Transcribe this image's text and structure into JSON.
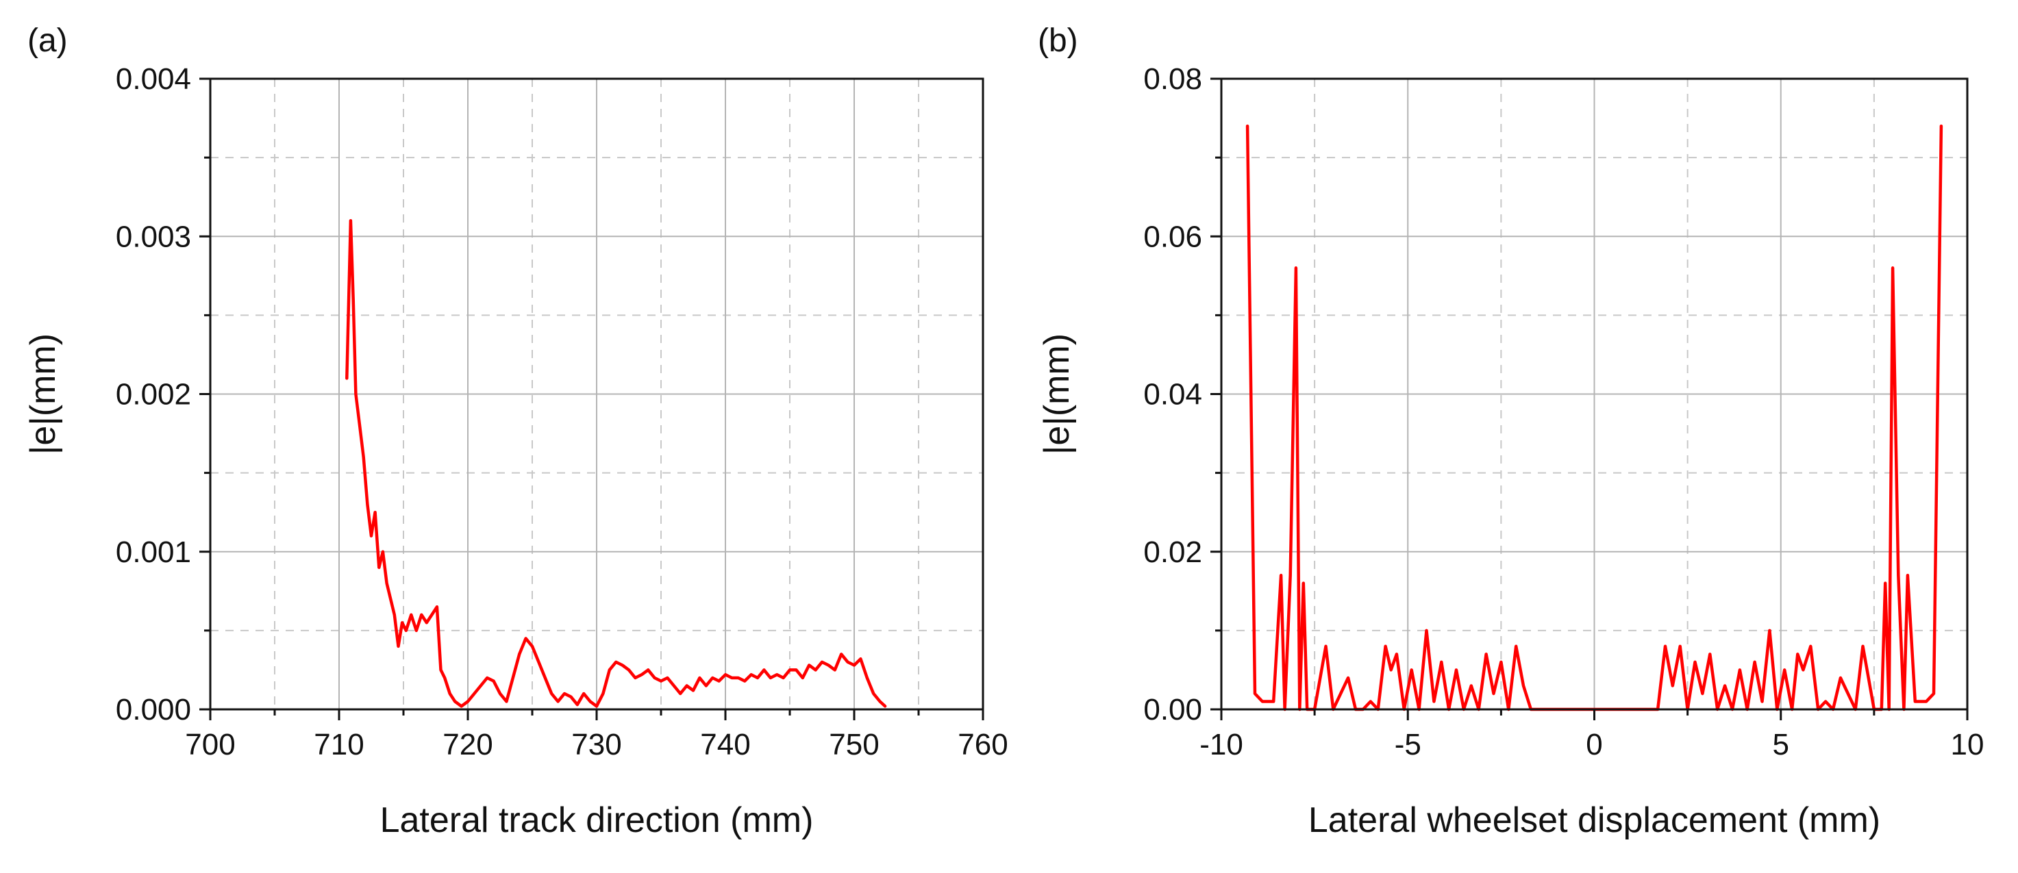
{
  "chart_data": [
    {
      "type": "line",
      "panel_label": "(a)",
      "title": "",
      "xlabel": "Lateral track direction (mm)",
      "ylabel": "|e|(mm)",
      "xlim": [
        700,
        760
      ],
      "ylim": [
        0,
        0.004
      ],
      "xticks": [
        700,
        710,
        720,
        730,
        740,
        750,
        760
      ],
      "xtick_labels": [
        "700",
        "710",
        "720",
        "730",
        "740",
        "750",
        "760"
      ],
      "yticks": [
        0,
        0.001,
        0.002,
        0.003,
        0.004
      ],
      "ytick_labels": [
        "0.000",
        "0.001",
        "0.002",
        "0.003",
        "0.004"
      ],
      "grid": true,
      "legend": "none",
      "series": [
        {
          "name": "|e|",
          "color": "#ff0000",
          "x": [
            710.6,
            710.9,
            711.1,
            711.3,
            711.6,
            711.9,
            712.2,
            712.5,
            712.8,
            713.1,
            713.4,
            713.7,
            714.0,
            714.3,
            714.6,
            714.9,
            715.2,
            715.6,
            716.0,
            716.4,
            716.8,
            717.2,
            717.6,
            717.9,
            718.2,
            718.6,
            719.0,
            719.5,
            720.0,
            720.5,
            721.0,
            721.5,
            722.0,
            722.5,
            723.0,
            723.5,
            724.0,
            724.5,
            725.0,
            725.5,
            726.0,
            726.5,
            727.0,
            727.5,
            728.0,
            728.5,
            729.0,
            729.5,
            730.0,
            730.5,
            731.0,
            731.5,
            732.0,
            732.5,
            733.0,
            733.5,
            734.0,
            734.5,
            735.0,
            735.5,
            736.0,
            736.5,
            737.0,
            737.5,
            738.0,
            738.5,
            739.0,
            739.5,
            740.0,
            740.5,
            741.0,
            741.5,
            742.0,
            742.5,
            743.0,
            743.5,
            744.0,
            744.5,
            745.0,
            745.5,
            746.0,
            746.5,
            747.0,
            747.5,
            748.0,
            748.5,
            749.0,
            749.5,
            750.0,
            750.5,
            751.0,
            751.5,
            752.0,
            752.4
          ],
          "y": [
            0.0021,
            0.0031,
            0.0026,
            0.002,
            0.0018,
            0.0016,
            0.0013,
            0.0011,
            0.00125,
            0.0009,
            0.001,
            0.0008,
            0.0007,
            0.0006,
            0.0004,
            0.00055,
            0.0005,
            0.0006,
            0.0005,
            0.0006,
            0.00055,
            0.0006,
            0.00065,
            0.00025,
            0.0002,
            0.0001,
            5e-05,
            2e-05,
            5e-05,
            0.0001,
            0.00015,
            0.0002,
            0.00018,
            0.0001,
            5e-05,
            0.0002,
            0.00035,
            0.00045,
            0.0004,
            0.0003,
            0.0002,
            0.0001,
            5e-05,
            0.0001,
            8e-05,
            3e-05,
            0.0001,
            5e-05,
            2e-05,
            0.0001,
            0.00025,
            0.0003,
            0.00028,
            0.00025,
            0.0002,
            0.00022,
            0.00025,
            0.0002,
            0.00018,
            0.0002,
            0.00015,
            0.0001,
            0.00015,
            0.00012,
            0.0002,
            0.00015,
            0.0002,
            0.00018,
            0.00022,
            0.0002,
            0.0002,
            0.00018,
            0.00022,
            0.0002,
            0.00025,
            0.0002,
            0.00022,
            0.0002,
            0.00025,
            0.00025,
            0.0002,
            0.00028,
            0.00025,
            0.0003,
            0.00028,
            0.00025,
            0.00035,
            0.0003,
            0.00028,
            0.00032,
            0.0002,
            0.0001,
            5e-05,
            2e-05
          ]
        }
      ]
    },
    {
      "type": "line",
      "panel_label": "(b)",
      "title": "",
      "xlabel": "Lateral wheelset displacement (mm)",
      "ylabel": "|e|(mm)",
      "xlim": [
        -10,
        10
      ],
      "ylim": [
        0,
        0.08
      ],
      "xticks": [
        -10,
        -5,
        0,
        5,
        10
      ],
      "xtick_labels": [
        "-10",
        "-5",
        "0",
        "5",
        "10"
      ],
      "yticks": [
        0,
        0.02,
        0.04,
        0.06,
        0.08
      ],
      "ytick_labels": [
        "0.00",
        "0.02",
        "0.04",
        "0.06",
        "0.08"
      ],
      "grid": true,
      "legend": "none",
      "series": [
        {
          "name": "|e|",
          "color": "#ff0000",
          "x": [
            -9.3,
            -9.1,
            -8.9,
            -8.6,
            -8.4,
            -8.3,
            -8.15,
            -8.0,
            -7.9,
            -7.8,
            -7.7,
            -7.5,
            -7.2,
            -7.0,
            -6.8,
            -6.6,
            -6.4,
            -6.2,
            -6.0,
            -5.8,
            -5.6,
            -5.45,
            -5.3,
            -5.1,
            -4.9,
            -4.7,
            -4.5,
            -4.3,
            -4.1,
            -3.9,
            -3.7,
            -3.5,
            -3.3,
            -3.1,
            -2.9,
            -2.7,
            -2.5,
            -2.3,
            -2.1,
            -1.9,
            -1.7,
            1.7,
            1.9,
            2.1,
            2.3,
            2.5,
            2.7,
            2.9,
            3.1,
            3.3,
            3.5,
            3.7,
            3.9,
            4.1,
            4.3,
            4.5,
            4.7,
            4.9,
            5.1,
            5.3,
            5.45,
            5.6,
            5.8,
            6.0,
            6.2,
            6.4,
            6.6,
            6.8,
            7.0,
            7.2,
            7.5,
            7.7,
            7.8,
            7.9,
            8.0,
            8.15,
            8.3,
            8.4,
            8.6,
            8.9,
            9.1,
            9.3
          ],
          "y": [
            0.074,
            0.002,
            0.001,
            0.001,
            0.017,
            0.0,
            0.017,
            0.056,
            0.0,
            0.016,
            0.0,
            0.0,
            0.008,
            0.0,
            0.002,
            0.004,
            0.0,
            0.0,
            0.001,
            0.0,
            0.008,
            0.005,
            0.007,
            0.0,
            0.005,
            0.0,
            0.01,
            0.001,
            0.006,
            0.0,
            0.005,
            0.0,
            0.003,
            0.0,
            0.007,
            0.002,
            0.006,
            0.0,
            0.008,
            0.003,
            0.0,
            0.0,
            0.008,
            0.003,
            0.008,
            0.0,
            0.006,
            0.002,
            0.007,
            0.0,
            0.003,
            0.0,
            0.005,
            0.0,
            0.006,
            0.001,
            0.01,
            0.0,
            0.005,
            0.0,
            0.007,
            0.005,
            0.008,
            0.0,
            0.001,
            0.0,
            0.004,
            0.002,
            0.0,
            0.008,
            0.0,
            0.0,
            0.016,
            0.0,
            0.056,
            0.017,
            0.0,
            0.017,
            0.001,
            0.001,
            0.002,
            0.074
          ]
        }
      ]
    }
  ]
}
